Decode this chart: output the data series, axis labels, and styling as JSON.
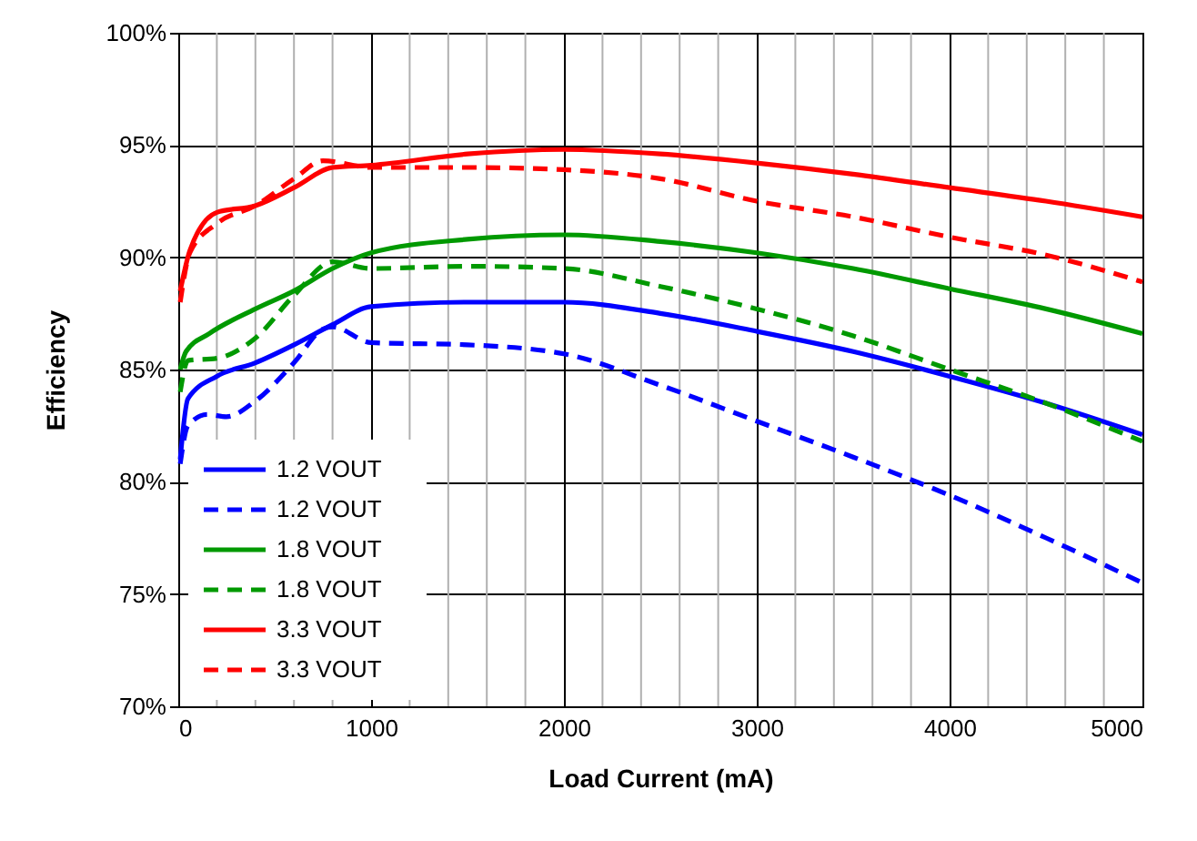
{
  "chart_data": {
    "type": "line",
    "xlabel": "Load Current (mA)",
    "ylabel": "Efficiency",
    "xlim": [
      0,
      5000
    ],
    "ylim": [
      70,
      100
    ],
    "xticks": [
      0,
      {
        "value": 200,
        "label": null
      },
      {
        "value": 400,
        "label": null
      },
      {
        "value": 600,
        "label": null
      },
      {
        "value": 800,
        "label": null
      },
      1000,
      {
        "value": 1200,
        "label": null
      },
      {
        "value": 1400,
        "label": null
      },
      {
        "value": 1600,
        "label": null
      },
      {
        "value": 1800,
        "label": null
      },
      2000,
      {
        "value": 2200,
        "label": null
      },
      {
        "value": 2400,
        "label": null
      },
      {
        "value": 2600,
        "label": null
      },
      {
        "value": 2800,
        "label": null
      },
      3000,
      {
        "value": 3200,
        "label": null
      },
      {
        "value": 3400,
        "label": null
      },
      {
        "value": 3600,
        "label": null
      },
      {
        "value": 3800,
        "label": null
      },
      4000,
      {
        "value": 4200,
        "label": null
      },
      {
        "value": 4400,
        "label": null
      },
      {
        "value": 4600,
        "label": null
      },
      {
        "value": 4800,
        "label": null
      },
      5000
    ],
    "yticks": [
      {
        "value": 70,
        "label": "70%"
      },
      {
        "value": 75,
        "label": "75%"
      },
      {
        "value": 80,
        "label": "80%"
      },
      {
        "value": 85,
        "label": "85%"
      },
      {
        "value": 90,
        "label": "90%"
      },
      {
        "value": 95,
        "label": "95%"
      },
      {
        "value": 100,
        "label": "100%"
      }
    ],
    "grid": true,
    "legend": "bottom left",
    "marker": "none",
    "series": [
      {
        "name": "1.2 VOUT",
        "color": "#0000ff",
        "line_style": "solid",
        "x": [
          10,
          50,
          200,
          400,
          600,
          800,
          1000,
          1500,
          2000,
          2500,
          3000,
          3500,
          4000,
          4500,
          5000
        ],
        "values": [
          81.0,
          83.7,
          84.7,
          85.3,
          86.1,
          87.0,
          87.8,
          88.0,
          88.0,
          87.5,
          86.7,
          85.8,
          84.7,
          83.5,
          82.1
        ]
      },
      {
        "name": "1.2 VOUT",
        "color": "#0000ff",
        "line_style": "dashed",
        "x": [
          10,
          50,
          150,
          250,
          400,
          600,
          750,
          800,
          1000,
          1500,
          2000,
          2500,
          3000,
          3500,
          4000,
          4500,
          5000
        ],
        "values": [
          80.8,
          82.5,
          83.0,
          82.9,
          83.6,
          85.3,
          86.8,
          86.9,
          86.2,
          86.1,
          85.7,
          84.3,
          82.7,
          81.1,
          79.4,
          77.5,
          75.5
        ]
      },
      {
        "name": "1.8 VOUT",
        "color": "#009900",
        "line_style": "solid",
        "x": [
          10,
          40,
          160,
          400,
          600,
          800,
          1000,
          1500,
          2000,
          2500,
          3000,
          3500,
          4000,
          4500,
          5000
        ],
        "values": [
          85.0,
          85.8,
          86.6,
          87.7,
          88.5,
          89.5,
          90.2,
          90.8,
          91.0,
          90.7,
          90.2,
          89.5,
          88.6,
          87.7,
          86.6
        ]
      },
      {
        "name": "1.8 VOUT",
        "color": "#009900",
        "line_style": "dashed",
        "x": [
          10,
          50,
          200,
          400,
          600,
          800,
          1000,
          1500,
          2000,
          2500,
          3000,
          3500,
          4000,
          4500,
          5000
        ],
        "values": [
          84.0,
          85.4,
          85.5,
          86.4,
          88.3,
          89.8,
          89.5,
          89.6,
          89.5,
          88.7,
          87.7,
          86.5,
          85.0,
          83.5,
          81.8
        ]
      },
      {
        "name": "3.3 VOUT",
        "color": "#ff0000",
        "line_style": "solid",
        "x": [
          10,
          60,
          200,
          400,
          600,
          800,
          1000,
          1500,
          2000,
          2500,
          3000,
          3500,
          4000,
          4500,
          5000
        ],
        "values": [
          88.5,
          90.3,
          92.0,
          92.3,
          93.1,
          94.0,
          94.1,
          94.6,
          94.8,
          94.6,
          94.2,
          93.7,
          93.1,
          92.5,
          91.8
        ]
      },
      {
        "name": "3.3 VOUT",
        "color": "#ff0000",
        "line_style": "dashed",
        "x": [
          10,
          60,
          200,
          400,
          600,
          750,
          1000,
          1500,
          2000,
          2500,
          3000,
          3500,
          4000,
          4500,
          5000
        ],
        "values": [
          88.0,
          90.2,
          91.5,
          92.3,
          93.5,
          94.3,
          94.0,
          94.0,
          93.9,
          93.5,
          92.5,
          91.8,
          90.9,
          90.1,
          88.9
        ]
      }
    ]
  }
}
